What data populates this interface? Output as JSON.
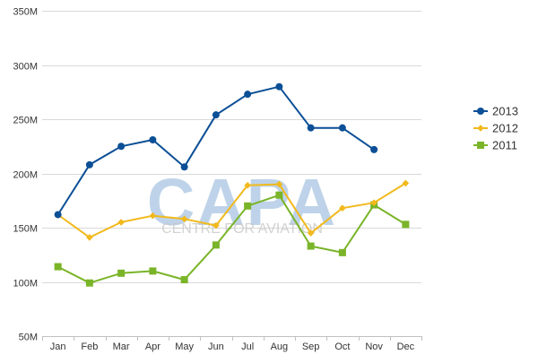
{
  "watermark": {
    "logo_text": "CAPA",
    "tagline": "CENTRE FOR AVIATION"
  },
  "chart_data": {
    "type": "line",
    "categories": [
      "Jan",
      "Feb",
      "Mar",
      "Apr",
      "May",
      "Jun",
      "Jul",
      "Aug",
      "Sep",
      "Oct",
      "Nov",
      "Dec"
    ],
    "ylim": [
      50,
      350
    ],
    "yticks": [
      50,
      100,
      150,
      200,
      250,
      300,
      350
    ],
    "ytick_labels": [
      "50M",
      "100M",
      "150M",
      "200M",
      "250M",
      "300M",
      "350M"
    ],
    "xlabel": "",
    "ylabel": "",
    "grid": "horizontal",
    "legend_position": "right",
    "series": [
      {
        "name": "2013",
        "color": "#0b4f96",
        "marker": "circle",
        "values": [
          162,
          208,
          225,
          231,
          206,
          254,
          273,
          280,
          242,
          242,
          222,
          null
        ]
      },
      {
        "name": "2012",
        "color": "#f2b91c",
        "marker": "diamond",
        "values": [
          162,
          141,
          155,
          161,
          158,
          152,
          189,
          190,
          145,
          168,
          173,
          191
        ]
      },
      {
        "name": "2011",
        "color": "#7ab428",
        "marker": "square",
        "values": [
          114,
          99,
          108,
          110,
          102,
          134,
          170,
          180,
          133,
          127,
          171,
          153
        ]
      }
    ]
  }
}
